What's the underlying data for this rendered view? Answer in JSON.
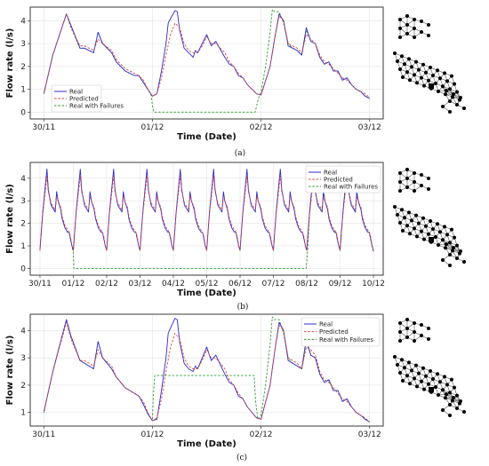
{
  "chart_data": [
    {
      "type": "line",
      "panel_label": "(a)",
      "xlabel": "Time (Date)",
      "ylabel": "Flow rate (l/s)",
      "ylim": [
        -0.3,
        4.6
      ],
      "yticks": [
        0,
        1,
        2,
        3,
        4
      ],
      "x_ticks": [
        {
          "t": 0,
          "label": "30/11"
        },
        {
          "t": 24,
          "label": "01/12"
        },
        {
          "t": 48,
          "label": "02/12"
        },
        {
          "t": 72,
          "label": "03/12"
        }
      ],
      "grid": true,
      "legend_position": "center-left",
      "series": [
        {
          "name": "Real",
          "style": "solid",
          "color": "#2c2ccf",
          "x": [
            0,
            2,
            5,
            6,
            8,
            9,
            10,
            11,
            12,
            13,
            15,
            16,
            18,
            19,
            20,
            21,
            22,
            23,
            24,
            25,
            26,
            27,
            27.5,
            28,
            29,
            29.5,
            30,
            31,
            32,
            33,
            33.5,
            34,
            35,
            36,
            37,
            38,
            40,
            41,
            42,
            43,
            44,
            45,
            47,
            48,
            50,
            51,
            52,
            53,
            54,
            55,
            56,
            57,
            58,
            59,
            60,
            61,
            62,
            63,
            64,
            65,
            66,
            67,
            68,
            69,
            70,
            71,
            72
          ],
          "y": [
            0.8,
            2.5,
            4.3,
            3.8,
            2.8,
            2.8,
            2.7,
            2.6,
            3.5,
            3.0,
            2.6,
            2.2,
            1.8,
            1.7,
            1.6,
            1.6,
            1.3,
            1.0,
            0.7,
            0.8,
            1.8,
            3.0,
            3.9,
            4.1,
            4.45,
            4.4,
            3.6,
            2.8,
            2.6,
            2.4,
            2.7,
            2.6,
            3.0,
            3.4,
            2.9,
            3.1,
            2.4,
            2.1,
            2.0,
            1.6,
            1.5,
            1.2,
            0.8,
            0.75,
            2.0,
            3.2,
            4.3,
            4.0,
            2.9,
            2.8,
            2.7,
            2.5,
            3.7,
            3.1,
            3.0,
            2.4,
            2.1,
            2.2,
            1.8,
            1.8,
            1.4,
            1.5,
            1.2,
            1.0,
            0.9,
            0.7,
            0.6
          ]
        },
        {
          "name": "Predicted",
          "style": "dashed",
          "color": "#d9423a",
          "x": [
            0,
            2,
            5,
            6,
            8,
            9,
            10,
            11,
            12,
            13,
            15,
            16,
            18,
            19,
            20,
            21,
            22,
            23,
            24,
            25,
            26,
            27,
            28,
            29,
            30,
            31,
            32,
            33,
            34,
            35,
            36,
            37,
            38,
            40,
            41,
            42,
            43,
            44,
            45,
            47,
            48,
            50,
            51,
            52,
            53,
            54,
            55,
            56,
            57,
            58,
            59,
            60,
            61,
            62,
            63,
            64,
            65,
            66,
            67,
            68,
            69,
            70,
            71,
            72
          ],
          "y": [
            0.8,
            2.5,
            4.3,
            3.7,
            2.9,
            2.9,
            2.8,
            2.7,
            3.2,
            3.0,
            2.7,
            2.3,
            1.9,
            1.8,
            1.7,
            1.6,
            1.4,
            1.0,
            0.7,
            0.8,
            1.5,
            2.5,
            3.4,
            3.9,
            3.7,
            3.0,
            2.7,
            2.6,
            2.6,
            2.9,
            3.3,
            3.0,
            3.0,
            2.6,
            2.2,
            2.0,
            1.7,
            1.5,
            1.2,
            0.8,
            0.75,
            2.0,
            3.2,
            4.2,
            4.0,
            3.0,
            2.9,
            2.8,
            2.6,
            3.4,
            3.2,
            3.0,
            2.5,
            2.2,
            2.1,
            1.9,
            1.7,
            1.5,
            1.4,
            1.2,
            1.0,
            0.9,
            0.8,
            0.65
          ]
        },
        {
          "name": "Real with Failures",
          "style": "dashed",
          "color": "#2e9a2e",
          "x": [
            0,
            2,
            5,
            6,
            8,
            9,
            10,
            11,
            12,
            13,
            15,
            16,
            18,
            19,
            20,
            21,
            22,
            23,
            23.7,
            24,
            24.3,
            46.7,
            47.3,
            47.7,
            48,
            49,
            50,
            50.5,
            51,
            52,
            53,
            54,
            55,
            56,
            57,
            58,
            59,
            60,
            61,
            62,
            63,
            64,
            65,
            66,
            67,
            68,
            69,
            70,
            71,
            72
          ],
          "y": [
            0.8,
            2.5,
            4.3,
            3.7,
            2.8,
            2.8,
            2.7,
            2.6,
            3.5,
            3.0,
            2.6,
            2.2,
            1.8,
            1.7,
            1.6,
            1.6,
            1.3,
            1.0,
            0.75,
            0.3,
            0.0,
            0.0,
            0.5,
            0.75,
            0.9,
            2.0,
            3.5,
            4.5,
            4.4,
            4.4,
            3.9,
            3.0,
            2.8,
            2.7,
            2.5,
            3.6,
            3.1,
            3.0,
            2.4,
            2.1,
            2.2,
            1.8,
            1.8,
            1.4,
            1.5,
            1.2,
            1.0,
            0.9,
            0.7,
            0.6
          ]
        }
      ]
    },
    {
      "type": "line",
      "panel_label": "(b)",
      "xlabel": "Time (Date)",
      "ylabel": "Flow rate (l/s)",
      "ylim": [
        -0.3,
        4.7
      ],
      "yticks": [
        0,
        1,
        2,
        3,
        4
      ],
      "x_ticks": [
        {
          "t": 0,
          "label": "30/11"
        },
        {
          "t": 24,
          "label": "01/12"
        },
        {
          "t": 48,
          "label": "02/12"
        },
        {
          "t": 72,
          "label": "03/12"
        },
        {
          "t": 96,
          "label": "04/12"
        },
        {
          "t": 120,
          "label": "05/12"
        },
        {
          "t": 144,
          "label": "06/12"
        },
        {
          "t": 168,
          "label": "07/12"
        },
        {
          "t": 192,
          "label": "08/12"
        },
        {
          "t": 216,
          "label": "09/12"
        },
        {
          "t": 240,
          "label": "10/12"
        }
      ],
      "grid": true,
      "legend_position": "top-right",
      "daily_profile": {
        "hours": [
          0,
          2,
          5,
          6,
          8,
          9,
          10,
          11,
          12,
          13,
          15,
          16,
          18,
          19,
          20,
          21,
          22,
          23
        ],
        "real": [
          0.8,
          2.5,
          4.4,
          3.5,
          2.8,
          2.7,
          2.6,
          2.5,
          3.4,
          3.0,
          2.6,
          2.2,
          1.8,
          1.7,
          1.6,
          1.6,
          1.3,
          1.0
        ],
        "predicted": [
          0.8,
          2.4,
          4.1,
          3.4,
          2.9,
          2.8,
          2.7,
          2.6,
          3.2,
          3.0,
          2.7,
          2.3,
          1.9,
          1.8,
          1.7,
          1.6,
          1.4,
          1.0
        ]
      },
      "series": [
        {
          "name": "Real",
          "style": "solid",
          "color": "#2c2ccf",
          "days": 10
        },
        {
          "name": "Predicted",
          "style": "dashed",
          "color": "#d9423a",
          "days": 10
        },
        {
          "name": "Real with Failures",
          "style": "dashed",
          "color": "#2e9a2e",
          "zero_from": 24,
          "zero_to": 192,
          "days": 10
        }
      ]
    },
    {
      "type": "line",
      "panel_label": "(c)",
      "xlabel": "Time (Date)",
      "ylabel": "Flow rate (l/s)",
      "ylim": [
        0.5,
        4.6
      ],
      "yticks": [
        1,
        2,
        3,
        4
      ],
      "x_ticks": [
        {
          "t": 0,
          "label": "30/11"
        },
        {
          "t": 24,
          "label": "01/12"
        },
        {
          "t": 48,
          "label": "02/12"
        },
        {
          "t": 72,
          "label": "03/12"
        }
      ],
      "grid": true,
      "legend_position": "top-right",
      "series": [
        {
          "name": "Real",
          "style": "solid",
          "color": "#2c2ccf",
          "x": [
            0,
            2,
            5,
            6,
            8,
            9,
            10,
            11,
            12,
            13,
            15,
            16,
            18,
            19,
            20,
            21,
            22,
            23,
            24,
            25,
            26,
            27,
            27.5,
            28,
            29,
            29.5,
            30,
            31,
            32,
            33,
            33.5,
            34,
            35,
            36,
            37,
            38,
            40,
            41,
            42,
            43,
            44,
            45,
            47,
            48,
            50,
            51,
            52,
            53,
            54,
            55,
            56,
            57,
            58,
            59,
            60,
            61,
            62,
            63,
            64,
            65,
            66,
            67,
            68,
            69,
            70,
            71,
            72
          ],
          "y": [
            1.0,
            2.5,
            4.4,
            3.8,
            2.9,
            2.8,
            2.7,
            2.6,
            3.6,
            3.0,
            2.6,
            2.3,
            1.9,
            1.8,
            1.7,
            1.6,
            1.3,
            0.95,
            0.7,
            0.75,
            1.8,
            3.0,
            3.9,
            4.1,
            4.45,
            4.4,
            3.6,
            2.8,
            2.6,
            2.5,
            2.7,
            2.6,
            3.0,
            3.4,
            2.9,
            3.1,
            2.4,
            2.1,
            2.0,
            1.6,
            1.5,
            1.2,
            0.8,
            0.75,
            2.0,
            3.2,
            4.3,
            4.0,
            2.9,
            2.8,
            2.7,
            2.6,
            3.7,
            3.1,
            3.0,
            2.4,
            2.1,
            2.2,
            1.8,
            1.8,
            1.4,
            1.5,
            1.2,
            1.0,
            0.9,
            0.75,
            0.65
          ]
        },
        {
          "name": "Predicted",
          "style": "dashed",
          "color": "#d9423a",
          "x": [
            0,
            2,
            5,
            6,
            8,
            9,
            10,
            11,
            12,
            13,
            15,
            16,
            18,
            19,
            20,
            21,
            22,
            23,
            24,
            25,
            26,
            27,
            28,
            29,
            30,
            31,
            32,
            33,
            34,
            35,
            36,
            37,
            38,
            40,
            41,
            42,
            43,
            44,
            45,
            47,
            48,
            50,
            51,
            52,
            53,
            54,
            55,
            56,
            57,
            58,
            59,
            60,
            61,
            62,
            63,
            64,
            65,
            66,
            67,
            68,
            69,
            70,
            71,
            72
          ],
          "y": [
            1.0,
            2.5,
            4.3,
            3.7,
            2.9,
            2.9,
            2.8,
            2.7,
            3.3,
            3.0,
            2.7,
            2.3,
            1.9,
            1.8,
            1.7,
            1.6,
            1.4,
            1.0,
            0.7,
            0.8,
            1.5,
            2.5,
            3.4,
            3.9,
            3.7,
            3.0,
            2.7,
            2.6,
            2.6,
            2.9,
            3.3,
            3.0,
            3.0,
            2.6,
            2.2,
            2.0,
            1.7,
            1.5,
            1.2,
            0.8,
            0.75,
            2.0,
            3.2,
            4.2,
            4.0,
            3.0,
            2.9,
            2.8,
            2.6,
            3.4,
            3.3,
            3.1,
            2.5,
            2.2,
            2.1,
            1.9,
            1.7,
            1.5,
            1.4,
            1.2,
            1.0,
            0.9,
            0.8,
            0.65
          ]
        },
        {
          "name": "Real with Failures",
          "style": "dashed",
          "color": "#2e9a2e",
          "x": [
            0,
            2,
            5,
            6,
            8,
            9,
            10,
            11,
            12,
            13,
            15,
            16,
            18,
            19,
            20,
            21,
            22,
            23,
            24,
            24.2,
            24.5,
            46.5,
            46.8,
            47.3,
            48,
            49,
            50,
            50.5,
            51,
            52,
            53,
            54,
            55,
            56,
            57,
            58,
            59,
            60,
            61,
            62,
            63,
            64,
            65,
            66,
            67,
            68,
            69,
            70,
            71,
            72
          ],
          "y": [
            1.0,
            2.5,
            4.4,
            3.8,
            2.9,
            2.8,
            2.7,
            2.6,
            3.6,
            3.0,
            2.6,
            2.3,
            1.9,
            1.8,
            1.7,
            1.6,
            1.3,
            0.95,
            0.7,
            1.6,
            2.35,
            2.35,
            1.4,
            0.75,
            0.9,
            2.0,
            3.5,
            4.5,
            4.4,
            4.4,
            3.9,
            3.0,
            2.8,
            2.7,
            2.6,
            3.6,
            3.1,
            3.0,
            2.4,
            2.1,
            2.2,
            1.8,
            1.8,
            1.4,
            1.5,
            1.2,
            1.0,
            0.9,
            0.75,
            0.65
          ]
        }
      ]
    }
  ],
  "network_icon": {
    "color": "#000000"
  }
}
